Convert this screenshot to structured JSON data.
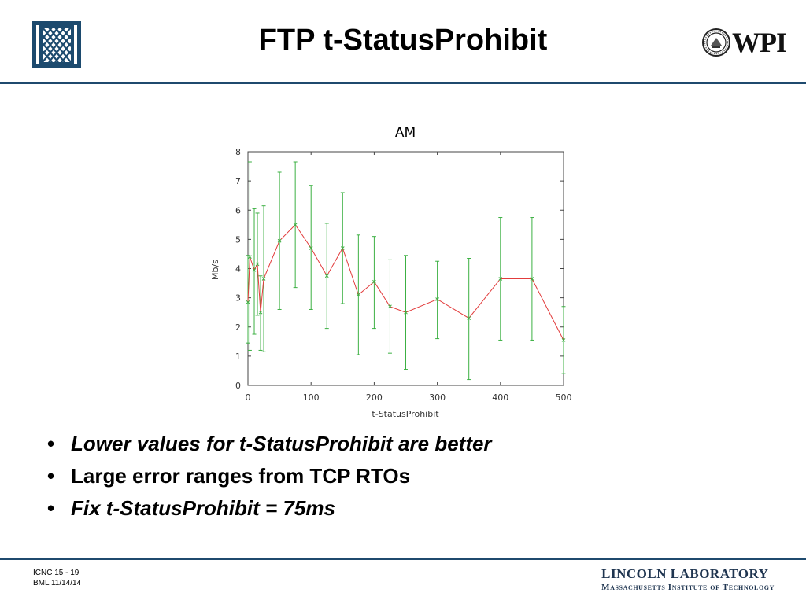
{
  "header": {
    "title": "FTP t-StatusProhibit",
    "wpi_text": "WPI",
    "colors": {
      "accent": "#1f4a6e",
      "logo": "#1c4a6e"
    }
  },
  "chart_data": {
    "type": "line",
    "title": "AM",
    "xlabel": "t-StatusProhibit",
    "ylabel": "Mb/s",
    "xlim": [
      0,
      500
    ],
    "ylim": [
      0,
      8
    ],
    "xticks": [
      0,
      100,
      200,
      300,
      400,
      500
    ],
    "yticks": [
      0,
      1,
      2,
      3,
      4,
      5,
      6,
      7,
      8
    ],
    "grid": false,
    "series": [
      {
        "name": "AM",
        "line_color": "#e23c3c",
        "errorbar_color": "#3cb043",
        "points": [
          {
            "x": 0,
            "y": 2.85,
            "lo": 1.45,
            "hi": 4.45
          },
          {
            "x": 3,
            "y": 4.4,
            "lo": 1.2,
            "hi": 7.65
          },
          {
            "x": 10,
            "y": 3.95,
            "lo": 1.75,
            "hi": 6.05
          },
          {
            "x": 15,
            "y": 4.15,
            "lo": 2.4,
            "hi": 5.9
          },
          {
            "x": 20,
            "y": 2.5,
            "lo": 1.2,
            "hi": 3.75
          },
          {
            "x": 25,
            "y": 3.65,
            "lo": 1.15,
            "hi": 6.15
          },
          {
            "x": 50,
            "y": 4.95,
            "lo": 2.6,
            "hi": 7.3
          },
          {
            "x": 75,
            "y": 5.5,
            "lo": 3.35,
            "hi": 7.65
          },
          {
            "x": 100,
            "y": 4.7,
            "lo": 2.6,
            "hi": 6.85
          },
          {
            "x": 125,
            "y": 3.75,
            "lo": 1.95,
            "hi": 5.55
          },
          {
            "x": 150,
            "y": 4.7,
            "lo": 2.8,
            "hi": 6.6
          },
          {
            "x": 175,
            "y": 3.1,
            "lo": 1.05,
            "hi": 5.15
          },
          {
            "x": 200,
            "y": 3.55,
            "lo": 1.95,
            "hi": 5.1
          },
          {
            "x": 225,
            "y": 2.7,
            "lo": 1.1,
            "hi": 4.3
          },
          {
            "x": 250,
            "y": 2.5,
            "lo": 0.55,
            "hi": 4.45
          },
          {
            "x": 300,
            "y": 2.95,
            "lo": 1.6,
            "hi": 4.25
          },
          {
            "x": 350,
            "y": 2.3,
            "lo": 0.2,
            "hi": 4.35
          },
          {
            "x": 400,
            "y": 3.65,
            "lo": 1.55,
            "hi": 5.75
          },
          {
            "x": 450,
            "y": 3.65,
            "lo": 1.55,
            "hi": 5.75
          },
          {
            "x": 500,
            "y": 1.55,
            "lo": 0.4,
            "hi": 2.7
          }
        ]
      }
    ]
  },
  "bullets": [
    {
      "text": "Lower values for t-StatusProhibit are better",
      "italic": true
    },
    {
      "text": "Large error ranges from TCP RTOs",
      "italic": false
    },
    {
      "text": "Fix t-StatusProhibit = 75ms",
      "italic": true
    }
  ],
  "bullet_glyph": "•",
  "footer": {
    "left_line1": "ICNC 15 - 19",
    "left_line2": "BML  11/14/14",
    "lab_line1": "LINCOLN LABORATORY",
    "lab_line2": "Massachusetts Institute of Technology"
  }
}
